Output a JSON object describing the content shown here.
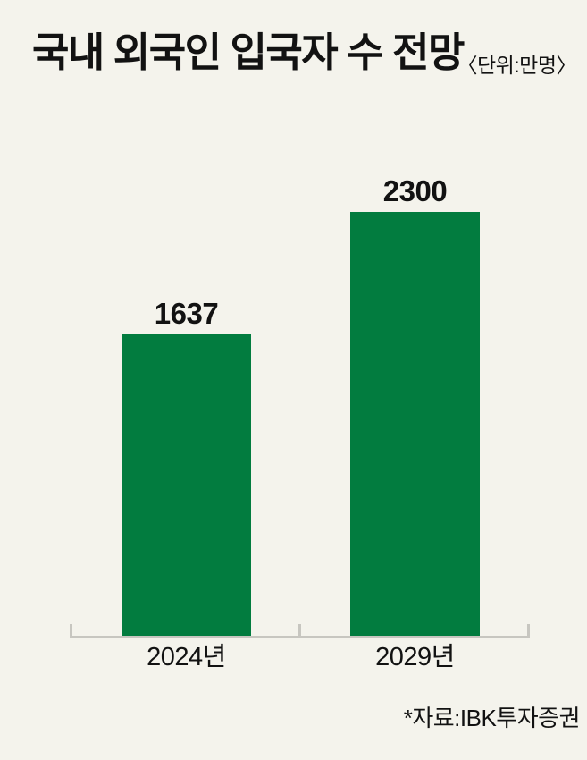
{
  "header": {
    "title": "국내 외국인 입국자 수 전망",
    "unit_label": "〈단위:만명〉"
  },
  "footer": {
    "source": "*자료:IBK투자증권"
  },
  "colors": {
    "background": "#f4f3ec",
    "bar": "#027c3f",
    "axis": "#c7c6c0",
    "text": "#121212"
  },
  "chart_data": {
    "type": "bar",
    "title": "국내 외국인 입국자 수 전망",
    "unit": "만명",
    "categories": [
      "2024년",
      "2029년"
    ],
    "values": [
      1637,
      2300
    ],
    "value_labels": [
      "1637",
      "2300"
    ],
    "series": [
      {
        "name": "국내 외국인 입국자 수",
        "values": [
          1637,
          2300
        ]
      }
    ],
    "ylim": [
      0,
      2300
    ],
    "grid": false,
    "legend": false,
    "bar_color": "#027c3f",
    "source": "IBK투자증권"
  }
}
